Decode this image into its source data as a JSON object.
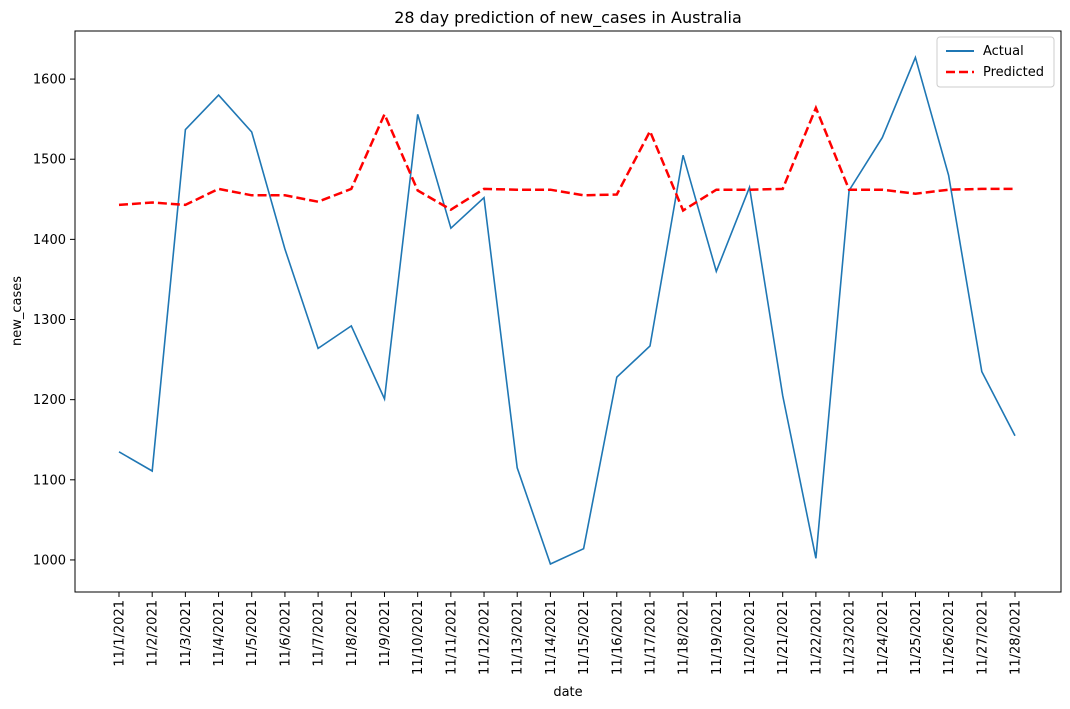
{
  "chart_data": {
    "type": "line",
    "title": "28 day prediction of new_cases in Australia",
    "xlabel": "date",
    "ylabel": "new_cases",
    "x": [
      "11/1/2021",
      "11/2/2021",
      "11/3/2021",
      "11/4/2021",
      "11/5/2021",
      "11/6/2021",
      "11/7/2021",
      "11/8/2021",
      "11/9/2021",
      "11/10/2021",
      "11/11/2021",
      "11/12/2021",
      "11/13/2021",
      "11/14/2021",
      "11/15/2021",
      "11/16/2021",
      "11/17/2021",
      "11/18/2021",
      "11/19/2021",
      "11/20/2021",
      "11/21/2021",
      "11/22/2021",
      "11/23/2021",
      "11/24/2021",
      "11/25/2021",
      "11/26/2021",
      "11/27/2021",
      "11/28/2021"
    ],
    "yticks": [
      1000,
      1100,
      1200,
      1300,
      1400,
      1500,
      1600
    ],
    "ylim": [
      960,
      1660
    ],
    "grid": false,
    "legend_position": "top-right",
    "series": [
      {
        "name": "Actual",
        "color": "#1f77b4",
        "style": "solid",
        "values": [
          1135,
          1111,
          1537,
          1580,
          1534,
          1388,
          1264,
          1292,
          1201,
          1556,
          1414,
          1452,
          1115,
          995,
          1014,
          1228,
          1267,
          1505,
          1360,
          1465,
          1205,
          1002,
          1461,
          1527,
          1627,
          1480,
          1235,
          1155
        ]
      },
      {
        "name": "Predicted",
        "color": "#ff0000",
        "style": "dashed",
        "values": [
          1443,
          1446,
          1443,
          1463,
          1455,
          1455,
          1447,
          1463,
          1556,
          1461,
          1437,
          1463,
          1462,
          1462,
          1455,
          1456,
          1535,
          1436,
          1462,
          1462,
          1463,
          1564,
          1462,
          1462,
          1457,
          1462,
          1463,
          1463
        ]
      }
    ]
  }
}
